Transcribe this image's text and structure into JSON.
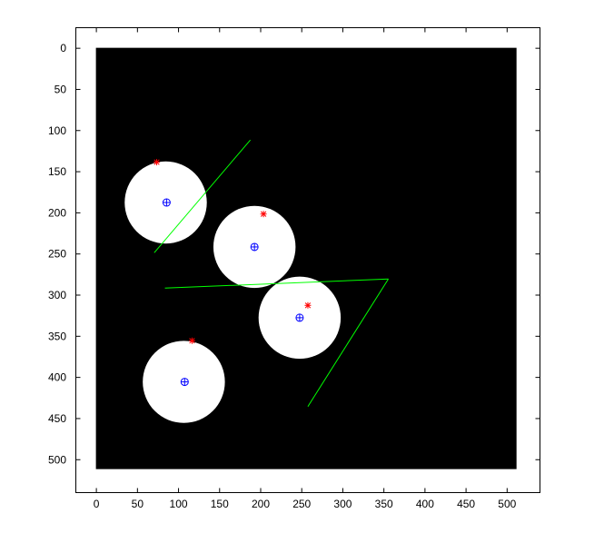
{
  "chart_data": {
    "type": "scatter",
    "title": "",
    "xlabel": "",
    "ylabel": "",
    "xlim": [
      -25,
      540
    ],
    "ylim": [
      540,
      -25
    ],
    "y_axis_reversed": true,
    "grid": false,
    "legend": "none",
    "image_extent": {
      "x": [
        0,
        512
      ],
      "y": [
        0,
        512
      ]
    },
    "x_ticks": [
      0,
      50,
      100,
      150,
      200,
      250,
      300,
      350,
      400,
      450,
      500
    ],
    "y_ticks": [
      0,
      50,
      100,
      150,
      200,
      250,
      300,
      350,
      400,
      450,
      500
    ],
    "x_tick_labels": [
      "0",
      "50",
      "100",
      "150",
      "200",
      "250",
      "300",
      "350",
      "400",
      "450",
      "500"
    ],
    "y_tick_labels": [
      "0",
      "50",
      "100",
      "150",
      "200",
      "250",
      "300",
      "350",
      "400",
      "450",
      "500"
    ],
    "circles": [
      {
        "cx": 85,
        "cy": 188,
        "r": 50
      },
      {
        "cx": 193,
        "cy": 242,
        "r": 50
      },
      {
        "cx": 248,
        "cy": 328,
        "r": 50
      },
      {
        "cx": 107,
        "cy": 406,
        "r": 50
      }
    ],
    "center_markers": [
      {
        "x": 86,
        "y": 188
      },
      {
        "x": 193,
        "y": 242
      },
      {
        "x": 248,
        "y": 328
      },
      {
        "x": 108,
        "y": 406
      }
    ],
    "star_markers": [
      {
        "x": 74,
        "y": 139
      },
      {
        "x": 204,
        "y": 202
      },
      {
        "x": 258,
        "y": 313
      },
      {
        "x": 117,
        "y": 356
      }
    ],
    "lines": [
      {
        "x": [
          71,
          188
        ],
        "y": [
          249,
          112
        ]
      },
      {
        "x": [
          84,
          356
        ],
        "y": [
          292,
          281
        ]
      },
      {
        "x": [
          356,
          258
        ],
        "y": [
          281,
          436
        ]
      }
    ],
    "colors": {
      "background_image": "#000000",
      "circles": "#ffffff",
      "lines": "#00ff00",
      "center_markers": "#0000ff",
      "star_markers": "#ff0000",
      "axes": "#000000"
    }
  }
}
